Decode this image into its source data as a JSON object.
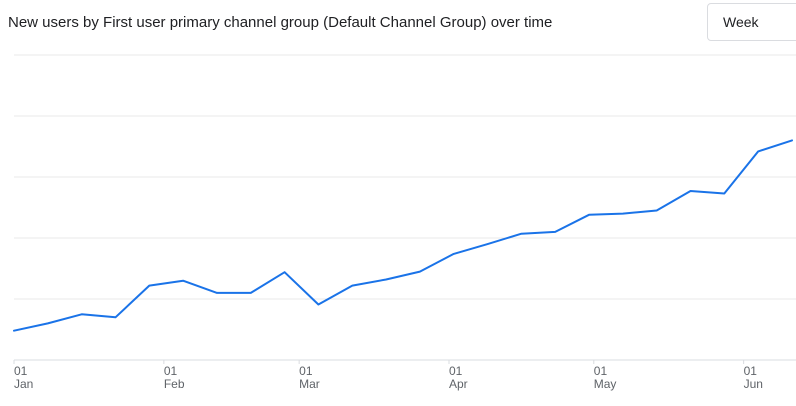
{
  "title": "New users by First user primary channel group (Default Channel Group) over time",
  "period_select": {
    "value": "Week"
  },
  "colors": {
    "series": "#1a73e8",
    "grid": "#e8e8e8",
    "text": "#202124",
    "tick": "#5f6368"
  },
  "chart_data": {
    "type": "line",
    "title": "New users by First user primary channel group (Default Channel Group) over time",
    "xlabel": "",
    "ylabel": "",
    "grid": true,
    "y_tick_labels_shown": false,
    "ylim": [
      0,
      5
    ],
    "x_ticks": [
      {
        "day": "01",
        "month": "Jan",
        "index": 0
      },
      {
        "day": "01",
        "month": "Feb",
        "index": 4.43
      },
      {
        "day": "01",
        "month": "Mar",
        "index": 8.43
      },
      {
        "day": "01",
        "month": "Apr",
        "index": 12.86
      },
      {
        "day": "01",
        "month": "May",
        "index": 17.14
      },
      {
        "day": "01",
        "month": "Jun",
        "index": 21.57
      }
    ],
    "series": [
      {
        "values": [
          0.48,
          0.6,
          0.75,
          0.7,
          1.22,
          1.3,
          1.1,
          1.1,
          1.44,
          0.91,
          1.22,
          1.32,
          1.45,
          1.74,
          1.9,
          2.07,
          2.1,
          2.38,
          2.4,
          2.45,
          2.77,
          2.73,
          3.42,
          3.6
        ]
      }
    ]
  }
}
